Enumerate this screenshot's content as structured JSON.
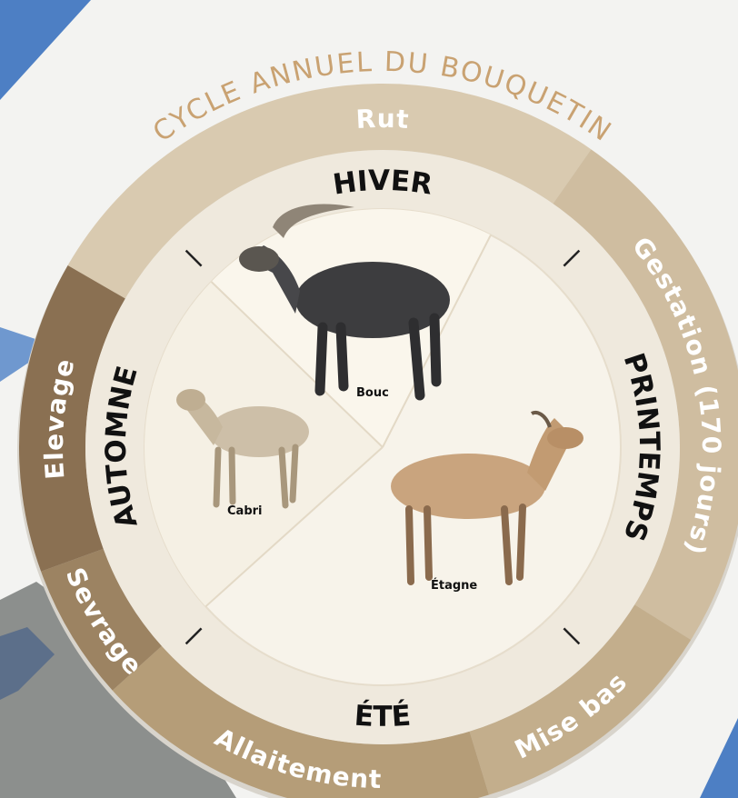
{
  "title": "CYCLE ANNUEL DU BOUQUETIN",
  "periods": [
    "Rut",
    "Gestation (170 jours)",
    "Mise bas",
    "Allaitement",
    "Sevrage",
    "Elevage"
  ],
  "seasons": [
    "HIVER",
    "PRINTEMPS",
    "ÉTÉ",
    "AUTOMNE"
  ],
  "animals": [
    "Bouc",
    "Étagne",
    "Cabri"
  ]
}
